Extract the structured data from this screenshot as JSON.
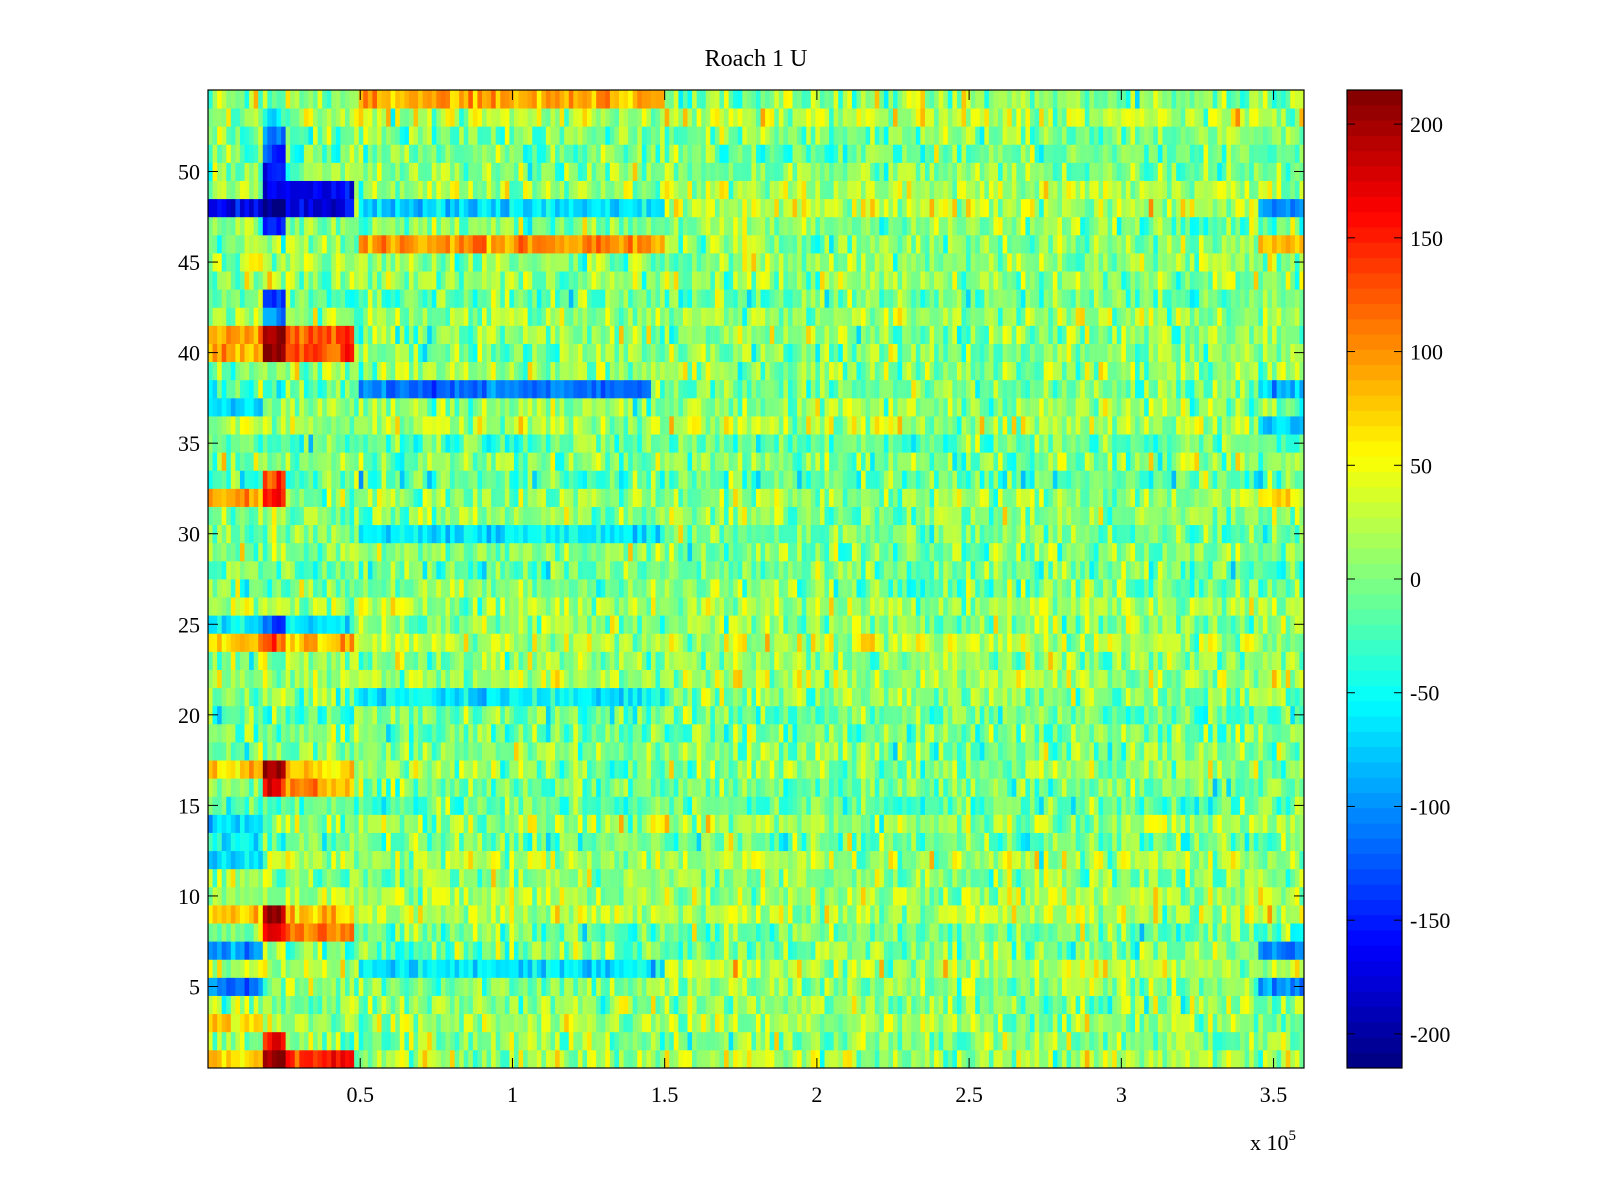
{
  "chart_data": {
    "type": "heatmap",
    "title": "Roach 1 U",
    "xlabel": "",
    "ylabel": "",
    "x_multiplier_label": "x 10",
    "x_multiplier_exponent": "5",
    "xlim": [
      0,
      3.6
    ],
    "ylim": [
      0.5,
      54.5
    ],
    "rows": 54,
    "columns": 240,
    "x_ticks": [
      0.5,
      1,
      1.5,
      2,
      2.5,
      3,
      3.5
    ],
    "x_tick_labels": [
      "0.5",
      "1",
      "1.5",
      "2",
      "2.5",
      "3",
      "3.5"
    ],
    "y_ticks": [
      5,
      10,
      15,
      20,
      25,
      30,
      35,
      40,
      45,
      50
    ],
    "y_tick_labels": [
      "5",
      "10",
      "15",
      "20",
      "25",
      "30",
      "35",
      "40",
      "45",
      "50"
    ],
    "colormap": "jet",
    "clim": [
      -215,
      215
    ],
    "colorbar_ticks": [
      -200,
      -150,
      -100,
      -50,
      0,
      50,
      100,
      150,
      200
    ],
    "colorbar_tick_labels": [
      "-200",
      "-150",
      "-100",
      "-50",
      "0",
      "50",
      "100",
      "150",
      "200"
    ],
    "background_mean": 5,
    "noise_std": 28,
    "features": [
      {
        "row": 48,
        "x0": 0.0,
        "x1": 0.48,
        "value": -170
      },
      {
        "row": 48,
        "x0": 0.18,
        "x1": 0.25,
        "value": -215
      },
      {
        "row": 48,
        "x0": 0.5,
        "x1": 1.5,
        "value": -70
      },
      {
        "row": 48,
        "x0": 3.45,
        "x1": 3.6,
        "value": -100
      },
      {
        "row": 49,
        "x0": 0.18,
        "x1": 0.48,
        "value": -170
      },
      {
        "row": 50,
        "x0": 0.18,
        "x1": 0.25,
        "value": -150
      },
      {
        "row": 51,
        "x0": 0.18,
        "x1": 0.25,
        "value": -130
      },
      {
        "row": 52,
        "x0": 0.18,
        "x1": 0.25,
        "value": -110
      },
      {
        "row": 53,
        "x0": 0.18,
        "x1": 0.25,
        "value": -60
      },
      {
        "row": 54,
        "x0": 0.5,
        "x1": 1.5,
        "value": 90
      },
      {
        "row": 47,
        "x0": 0.18,
        "x1": 0.25,
        "value": -150
      },
      {
        "row": 46,
        "x0": 0.5,
        "x1": 1.5,
        "value": 100
      },
      {
        "row": 46,
        "x0": 3.45,
        "x1": 3.6,
        "value": 80
      },
      {
        "row": 43,
        "x0": 0.18,
        "x1": 0.25,
        "value": -140
      },
      {
        "row": 42,
        "x0": 0.18,
        "x1": 0.25,
        "value": -100
      },
      {
        "row": 41,
        "x0": 0.0,
        "x1": 0.18,
        "value": 100
      },
      {
        "row": 41,
        "x0": 0.18,
        "x1": 0.25,
        "value": 210
      },
      {
        "row": 41,
        "x0": 0.25,
        "x1": 0.48,
        "value": 130
      },
      {
        "row": 40,
        "x0": 0.0,
        "x1": 0.18,
        "value": 90
      },
      {
        "row": 40,
        "x0": 0.18,
        "x1": 0.25,
        "value": 210
      },
      {
        "row": 40,
        "x0": 0.25,
        "x1": 0.48,
        "value": 130
      },
      {
        "row": 38,
        "x0": 0.5,
        "x1": 1.45,
        "value": -110
      },
      {
        "row": 38,
        "x0": 3.45,
        "x1": 3.6,
        "value": -80
      },
      {
        "row": 37,
        "x0": 0.0,
        "x1": 0.18,
        "value": -60
      },
      {
        "row": 36,
        "x0": 3.45,
        "x1": 3.6,
        "value": -70
      },
      {
        "row": 33,
        "x0": 0.18,
        "x1": 0.25,
        "value": 140
      },
      {
        "row": 32,
        "x0": 0.0,
        "x1": 0.18,
        "value": 90
      },
      {
        "row": 32,
        "x0": 0.18,
        "x1": 0.25,
        "value": 160
      },
      {
        "row": 32,
        "x0": 3.45,
        "x1": 3.6,
        "value": 60
      },
      {
        "row": 30,
        "x0": 0.5,
        "x1": 1.5,
        "value": -60
      },
      {
        "row": 25,
        "x0": 0.0,
        "x1": 0.48,
        "value": -60
      },
      {
        "row": 25,
        "x0": 0.18,
        "x1": 0.25,
        "value": -130
      },
      {
        "row": 24,
        "x0": 0.0,
        "x1": 0.48,
        "value": 80
      },
      {
        "row": 24,
        "x0": 0.18,
        "x1": 0.25,
        "value": 120
      },
      {
        "row": 21,
        "x0": 0.5,
        "x1": 1.5,
        "value": -60
      },
      {
        "row": 17,
        "x0": 0.0,
        "x1": 0.48,
        "value": 70
      },
      {
        "row": 17,
        "x0": 0.18,
        "x1": 0.25,
        "value": 190
      },
      {
        "row": 16,
        "x0": 0.18,
        "x1": 0.25,
        "value": 160
      },
      {
        "row": 16,
        "x0": 0.25,
        "x1": 0.48,
        "value": 90
      },
      {
        "row": 14,
        "x0": 0.0,
        "x1": 0.18,
        "value": -70
      },
      {
        "row": 13,
        "x0": 0.0,
        "x1": 0.18,
        "value": -60
      },
      {
        "row": 12,
        "x0": 0.0,
        "x1": 0.18,
        "value": -70
      },
      {
        "row": 9,
        "x0": 0.0,
        "x1": 0.48,
        "value": 80
      },
      {
        "row": 9,
        "x0": 0.18,
        "x1": 0.25,
        "value": 200
      },
      {
        "row": 8,
        "x0": 0.18,
        "x1": 0.25,
        "value": 170
      },
      {
        "row": 8,
        "x0": 0.25,
        "x1": 0.48,
        "value": 110
      },
      {
        "row": 7,
        "x0": 0.0,
        "x1": 0.18,
        "value": -100
      },
      {
        "row": 7,
        "x0": 3.45,
        "x1": 3.6,
        "value": -110
      },
      {
        "row": 6,
        "x0": 0.5,
        "x1": 1.5,
        "value": -60
      },
      {
        "row": 5,
        "x0": 0.0,
        "x1": 0.18,
        "value": -110
      },
      {
        "row": 5,
        "x0": 3.45,
        "x1": 3.6,
        "value": -100
      },
      {
        "row": 3,
        "x0": 0.0,
        "x1": 0.18,
        "value": 70
      },
      {
        "row": 2,
        "x0": 0.18,
        "x1": 0.25,
        "value": 170
      },
      {
        "row": 1,
        "x0": 0.0,
        "x1": 0.18,
        "value": 70
      },
      {
        "row": 1,
        "x0": 0.18,
        "x1": 0.25,
        "value": 215
      },
      {
        "row": 1,
        "x0": 0.25,
        "x1": 0.48,
        "value": 150
      }
    ]
  }
}
